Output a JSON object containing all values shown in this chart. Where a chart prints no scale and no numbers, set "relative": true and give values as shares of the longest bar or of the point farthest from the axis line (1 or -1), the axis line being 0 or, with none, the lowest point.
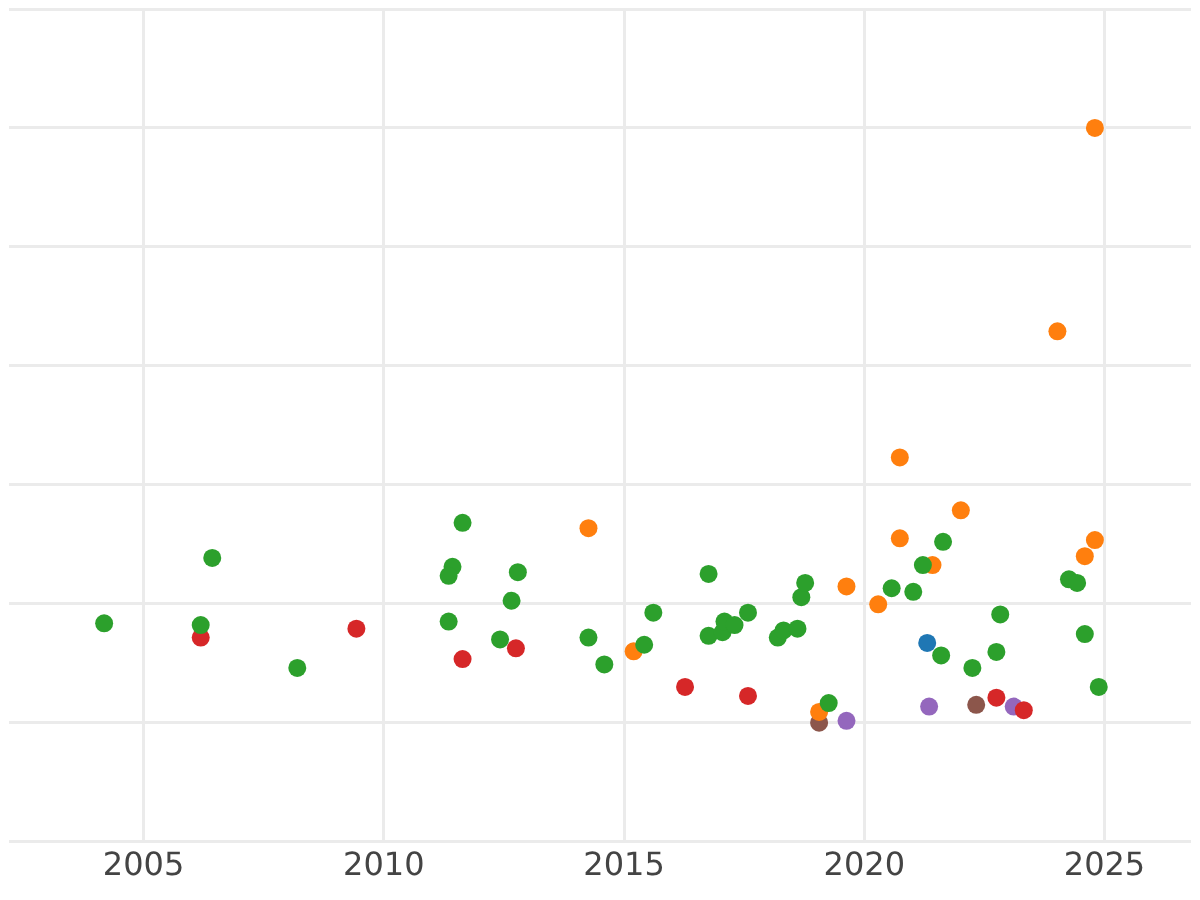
{
  "chart_data": {
    "type": "scatter",
    "relative": true,
    "grid": true,
    "legend": false,
    "marker": "circle",
    "xlim": [
      2002.2,
      2026.8
    ],
    "xticks": [
      2005,
      2010,
      2015,
      2020,
      2025
    ],
    "series": [
      {
        "color": "#2ca02c",
        "x": [
          2004.18,
          2006.19,
          2006.43,
          2008.2,
          2011.64,
          2011.43,
          2011.35,
          2011.35,
          2012.42,
          2012.79,
          2012.66,
          2014.26,
          2014.59,
          2015.42,
          2015.61,
          2016.76,
          2016.76,
          2017.05,
          2017.09,
          2017.3,
          2017.58,
          2018.2,
          2018.32,
          2018.61,
          2018.69,
          2018.77,
          2019.26,
          2020.57,
          2021.02,
          2021.22,
          2021.64,
          2021.6,
          2022.25,
          2022.75,
          2022.83,
          2024.26,
          2024.43,
          2024.59,
          2024.88
        ],
        "values": [
          0.167,
          0.164,
          0.277,
          0.092,
          0.336,
          0.262,
          0.247,
          0.17,
          0.14,
          0.253,
          0.205,
          0.143,
          0.098,
          0.131,
          0.185,
          0.25,
          0.146,
          0.152,
          0.17,
          0.164,
          0.185,
          0.143,
          0.155,
          0.158,
          0.211,
          0.235,
          0.033,
          0.226,
          0.22,
          0.265,
          0.304,
          0.113,
          0.092,
          0.119,
          0.182,
          0.241,
          0.235,
          0.149,
          0.06
        ]
      },
      {
        "color": "#ff7f0e",
        "x": [
          2014.26,
          2015.2,
          2019.63,
          2020.29,
          2020.74,
          2020.74,
          2021.42,
          2022.01,
          2024.02,
          2024.59,
          2024.8,
          2024.8,
          2019.06
        ],
        "values": [
          0.327,
          0.12,
          0.229,
          0.199,
          0.446,
          0.31,
          0.265,
          0.357,
          0.658,
          0.28,
          0.307,
          1.0,
          0.018
        ]
      },
      {
        "color": "#d62728",
        "x": [
          2006.19,
          2009.43,
          2011.64,
          2012.75,
          2016.27,
          2017.58,
          2022.75,
          2023.32
        ],
        "values": [
          0.143,
          0.158,
          0.107,
          0.125,
          0.06,
          0.045,
          0.042,
          0.021
        ]
      },
      {
        "color": "#1f77b4",
        "x": [
          2021.31
        ],
        "values": [
          0.134
        ]
      },
      {
        "color": "#9467bd",
        "x": [
          2019.63,
          2021.35,
          2023.11
        ],
        "values": [
          0.003,
          0.027,
          0.027
        ]
      },
      {
        "color": "#8c564b",
        "x": [
          2019.06,
          2022.33
        ],
        "values": [
          0,
          0.03
        ]
      }
    ]
  }
}
